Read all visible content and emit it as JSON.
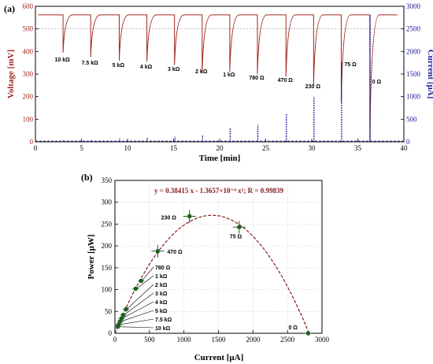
{
  "panels": [
    "(a)",
    "(b)"
  ],
  "chart_data": [
    {
      "type": "line",
      "panel": "(a)",
      "xlabel": "Time [min]",
      "ylabel": "Voltage [mV]",
      "y2label": "Current [μA]",
      "xlim": [
        0,
        40
      ],
      "ylim": [
        0,
        600
      ],
      "y2lim": [
        0,
        3000
      ],
      "xticks": [
        0,
        5,
        10,
        15,
        20,
        25,
        30,
        35,
        40
      ],
      "yticks": [
        0,
        100,
        200,
        300,
        400,
        500,
        600
      ],
      "y2ticks": [
        0,
        500,
        1000,
        1500,
        2000,
        2500,
        3000
      ],
      "colors": {
        "voltage": "#a0281e",
        "current": "#1a1aa0"
      },
      "baseline_voltage_mV": 562,
      "reference_voltage_mV": 500,
      "events": [
        {
          "label": "10 kΩ",
          "time": 3.0,
          "voltage": 395,
          "current": 40
        },
        {
          "label": "7.5 kΩ",
          "time": 6.0,
          "voltage": 375,
          "current": 52
        },
        {
          "label": "5 kΩ",
          "time": 9.1,
          "voltage": 360,
          "current": 75
        },
        {
          "label": "4 kΩ",
          "time": 12.1,
          "voltage": 355,
          "current": 92
        },
        {
          "label": "3 kΩ",
          "time": 15.1,
          "voltage": 340,
          "current": 115
        },
        {
          "label": "2 kΩ",
          "time": 18.1,
          "voltage": 305,
          "current": 155
        },
        {
          "label": "1 kΩ",
          "time": 21.1,
          "voltage": 310,
          "current": 300
        },
        {
          "label": "780 Ω",
          "time": 24.1,
          "voltage": 300,
          "current": 380
        },
        {
          "label": "470 Ω",
          "time": 27.2,
          "voltage": 290,
          "current": 620
        },
        {
          "label": "230 Ω",
          "time": 30.2,
          "voltage": 250,
          "current": 1000
        },
        {
          "label": "75 Ω",
          "time": 33.2,
          "voltage": 175,
          "current": 1780
        },
        {
          "label": "0 Ω",
          "time": 36.3,
          "voltage": 0,
          "current": 2800
        }
      ]
    },
    {
      "type": "scatter",
      "panel": "(b)",
      "xlabel": "Current [μA]",
      "ylabel": "Power [μW]",
      "xlim": [
        0,
        3000
      ],
      "ylim": [
        0,
        350
      ],
      "xticks": [
        0,
        500,
        1000,
        1500,
        2000,
        2500,
        3000
      ],
      "yticks": [
        0,
        50,
        100,
        150,
        200,
        250,
        300,
        350
      ],
      "grid": true,
      "fit_equation": "y = 0.38415 x - 1.3657×10⁻⁴ x²;  R = 0.99839",
      "fit": {
        "a": 0.38415,
        "b": 0.00013657
      },
      "colors": {
        "points": "#1f5c1f",
        "fit": "#8b1a1a"
      },
      "points": [
        {
          "label": "10 kΩ",
          "x": 40,
          "y": 15
        },
        {
          "label": "7.5 kΩ",
          "x": 55,
          "y": 20
        },
        {
          "label": "5 kΩ",
          "x": 75,
          "y": 27
        },
        {
          "label": "4 kΩ",
          "x": 95,
          "y": 34
        },
        {
          "label": "3 kΩ",
          "x": 120,
          "y": 42
        },
        {
          "label": "2 kΩ",
          "x": 160,
          "y": 55
        },
        {
          "label": "1 kΩ",
          "x": 300,
          "y": 102
        },
        {
          "label": "780 Ω",
          "x": 380,
          "y": 120
        },
        {
          "label": "470 Ω",
          "x": 620,
          "y": 188
        },
        {
          "label": "230 Ω",
          "x": 1080,
          "y": 268
        },
        {
          "label": "75 Ω",
          "x": 1800,
          "y": 243
        },
        {
          "label": "0 Ω",
          "x": 2800,
          "y": 0
        }
      ]
    }
  ]
}
